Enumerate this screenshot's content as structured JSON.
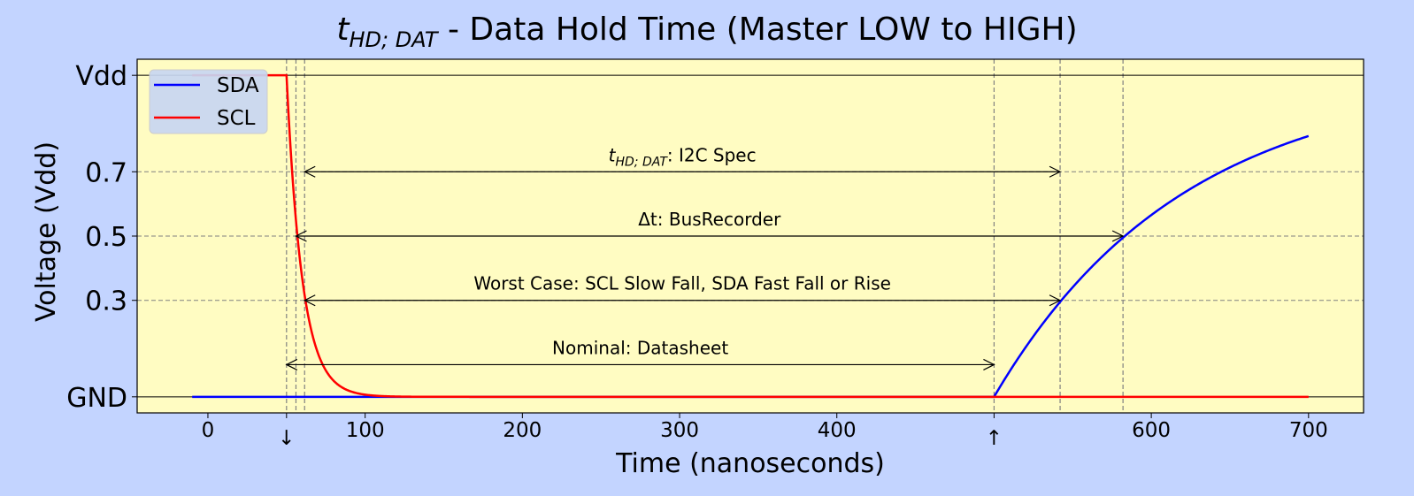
{
  "colors": {
    "figure_bg": "#c3d4ff",
    "plot_bg": "#fffcc2",
    "sda": "#0000ff",
    "scl": "#ff0000",
    "grid": "#808080",
    "legend_bg": "#c8d6f2"
  },
  "chart_data": {
    "type": "line",
    "title_main": "t",
    "title_sub": "HD; DAT",
    "title_rest": " - Data Hold Time (Master LOW to HIGH)",
    "xlabel": "Time (nanoseconds)",
    "ylabel": "Voltage (Vdd)",
    "xlim": [
      -45,
      735
    ],
    "ylim": [
      -0.05,
      1.05
    ],
    "xticks": [
      {
        "value": 0,
        "label": "0"
      },
      {
        "value": 50,
        "label": "↓"
      },
      {
        "value": 100,
        "label": "100"
      },
      {
        "value": 200,
        "label": "200"
      },
      {
        "value": 300,
        "label": "300"
      },
      {
        "value": 400,
        "label": "400"
      },
      {
        "value": 500,
        "label": "↑"
      },
      {
        "value": 600,
        "label": "600"
      },
      {
        "value": 700,
        "label": "700"
      }
    ],
    "yticks": [
      {
        "value": 0.0,
        "label": "GND"
      },
      {
        "value": 0.3,
        "label": "0.3"
      },
      {
        "value": 0.5,
        "label": "0.5"
      },
      {
        "value": 0.7,
        "label": "0.7"
      },
      {
        "value": 1.0,
        "label": "Vdd"
      }
    ],
    "horizontal_gridlines": [
      0.3,
      0.5,
      0.7
    ],
    "solid_hlines": [
      0.0,
      1.0
    ],
    "vertical_gridlines": [
      50,
      56,
      61.5,
      500,
      542,
      582
    ],
    "series": [
      {
        "name": "SDA",
        "color": "#0000ff",
        "low_from": -10,
        "rise_start": 500,
        "tau": 120,
        "end": 700
      },
      {
        "name": "SCL",
        "color": "#ff0000",
        "high_from": -10,
        "fall_start": 50,
        "tau": 10,
        "end": 700
      }
    ],
    "legend": {
      "position": "top-left",
      "entries": [
        "SDA",
        "SCL"
      ]
    },
    "annotations": [
      {
        "x1": 61.5,
        "x2": 542,
        "y": 0.7,
        "text_pre": "t",
        "text_sub": "HD; DAT",
        "text_post": ": I2C Spec"
      },
      {
        "x1": 56,
        "x2": 582,
        "y": 0.5,
        "text_pre": "Δt: BusRecorder",
        "text_sub": "",
        "text_post": ""
      },
      {
        "x1": 61.5,
        "x2": 542,
        "y": 0.3,
        "text_pre": "Worst Case: SCL Slow Fall, SDA Fast Fall or Rise",
        "text_sub": "",
        "text_post": ""
      },
      {
        "x1": 50,
        "x2": 500,
        "y": 0.1,
        "text_pre": "Nominal: Datasheet",
        "text_sub": "",
        "text_post": ""
      }
    ]
  }
}
